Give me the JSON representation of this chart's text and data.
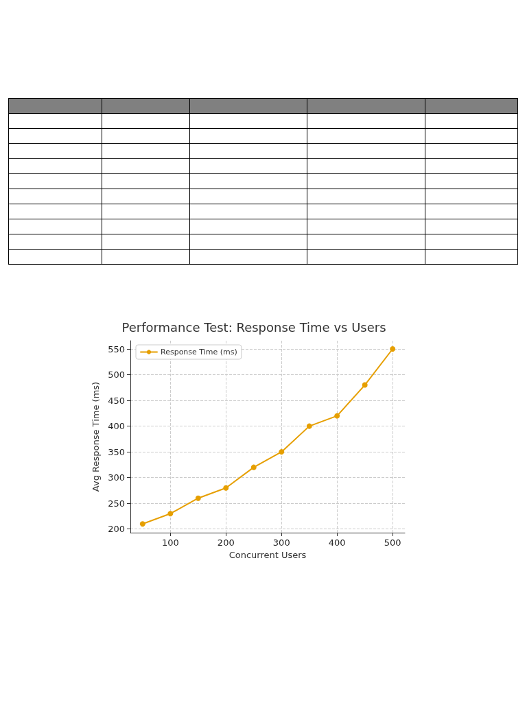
{
  "chart_data": {
    "type": "line",
    "title": "Performance Test: Response Time vs Users",
    "xlabel": "Concurrent Users",
    "ylabel": "Avg Response Time (ms)",
    "x": [
      50,
      100,
      150,
      200,
      250,
      300,
      350,
      400,
      450,
      500
    ],
    "series": [
      {
        "name": "Response Time (ms)",
        "color": "#e69f00",
        "values": [
          210,
          230,
          260,
          280,
          320,
          350,
          400,
          420,
          480,
          550
        ]
      }
    ],
    "xlim": [
      28,
      522
    ],
    "xticks": [
      100,
      200,
      300,
      400,
      500
    ],
    "ylim": [
      193,
      566
    ],
    "yticks": [
      200,
      250,
      300,
      350,
      400,
      450,
      500,
      550
    ],
    "grid": true,
    "legend": "top left",
    "marker": "circle",
    "line_style": "solid"
  }
}
